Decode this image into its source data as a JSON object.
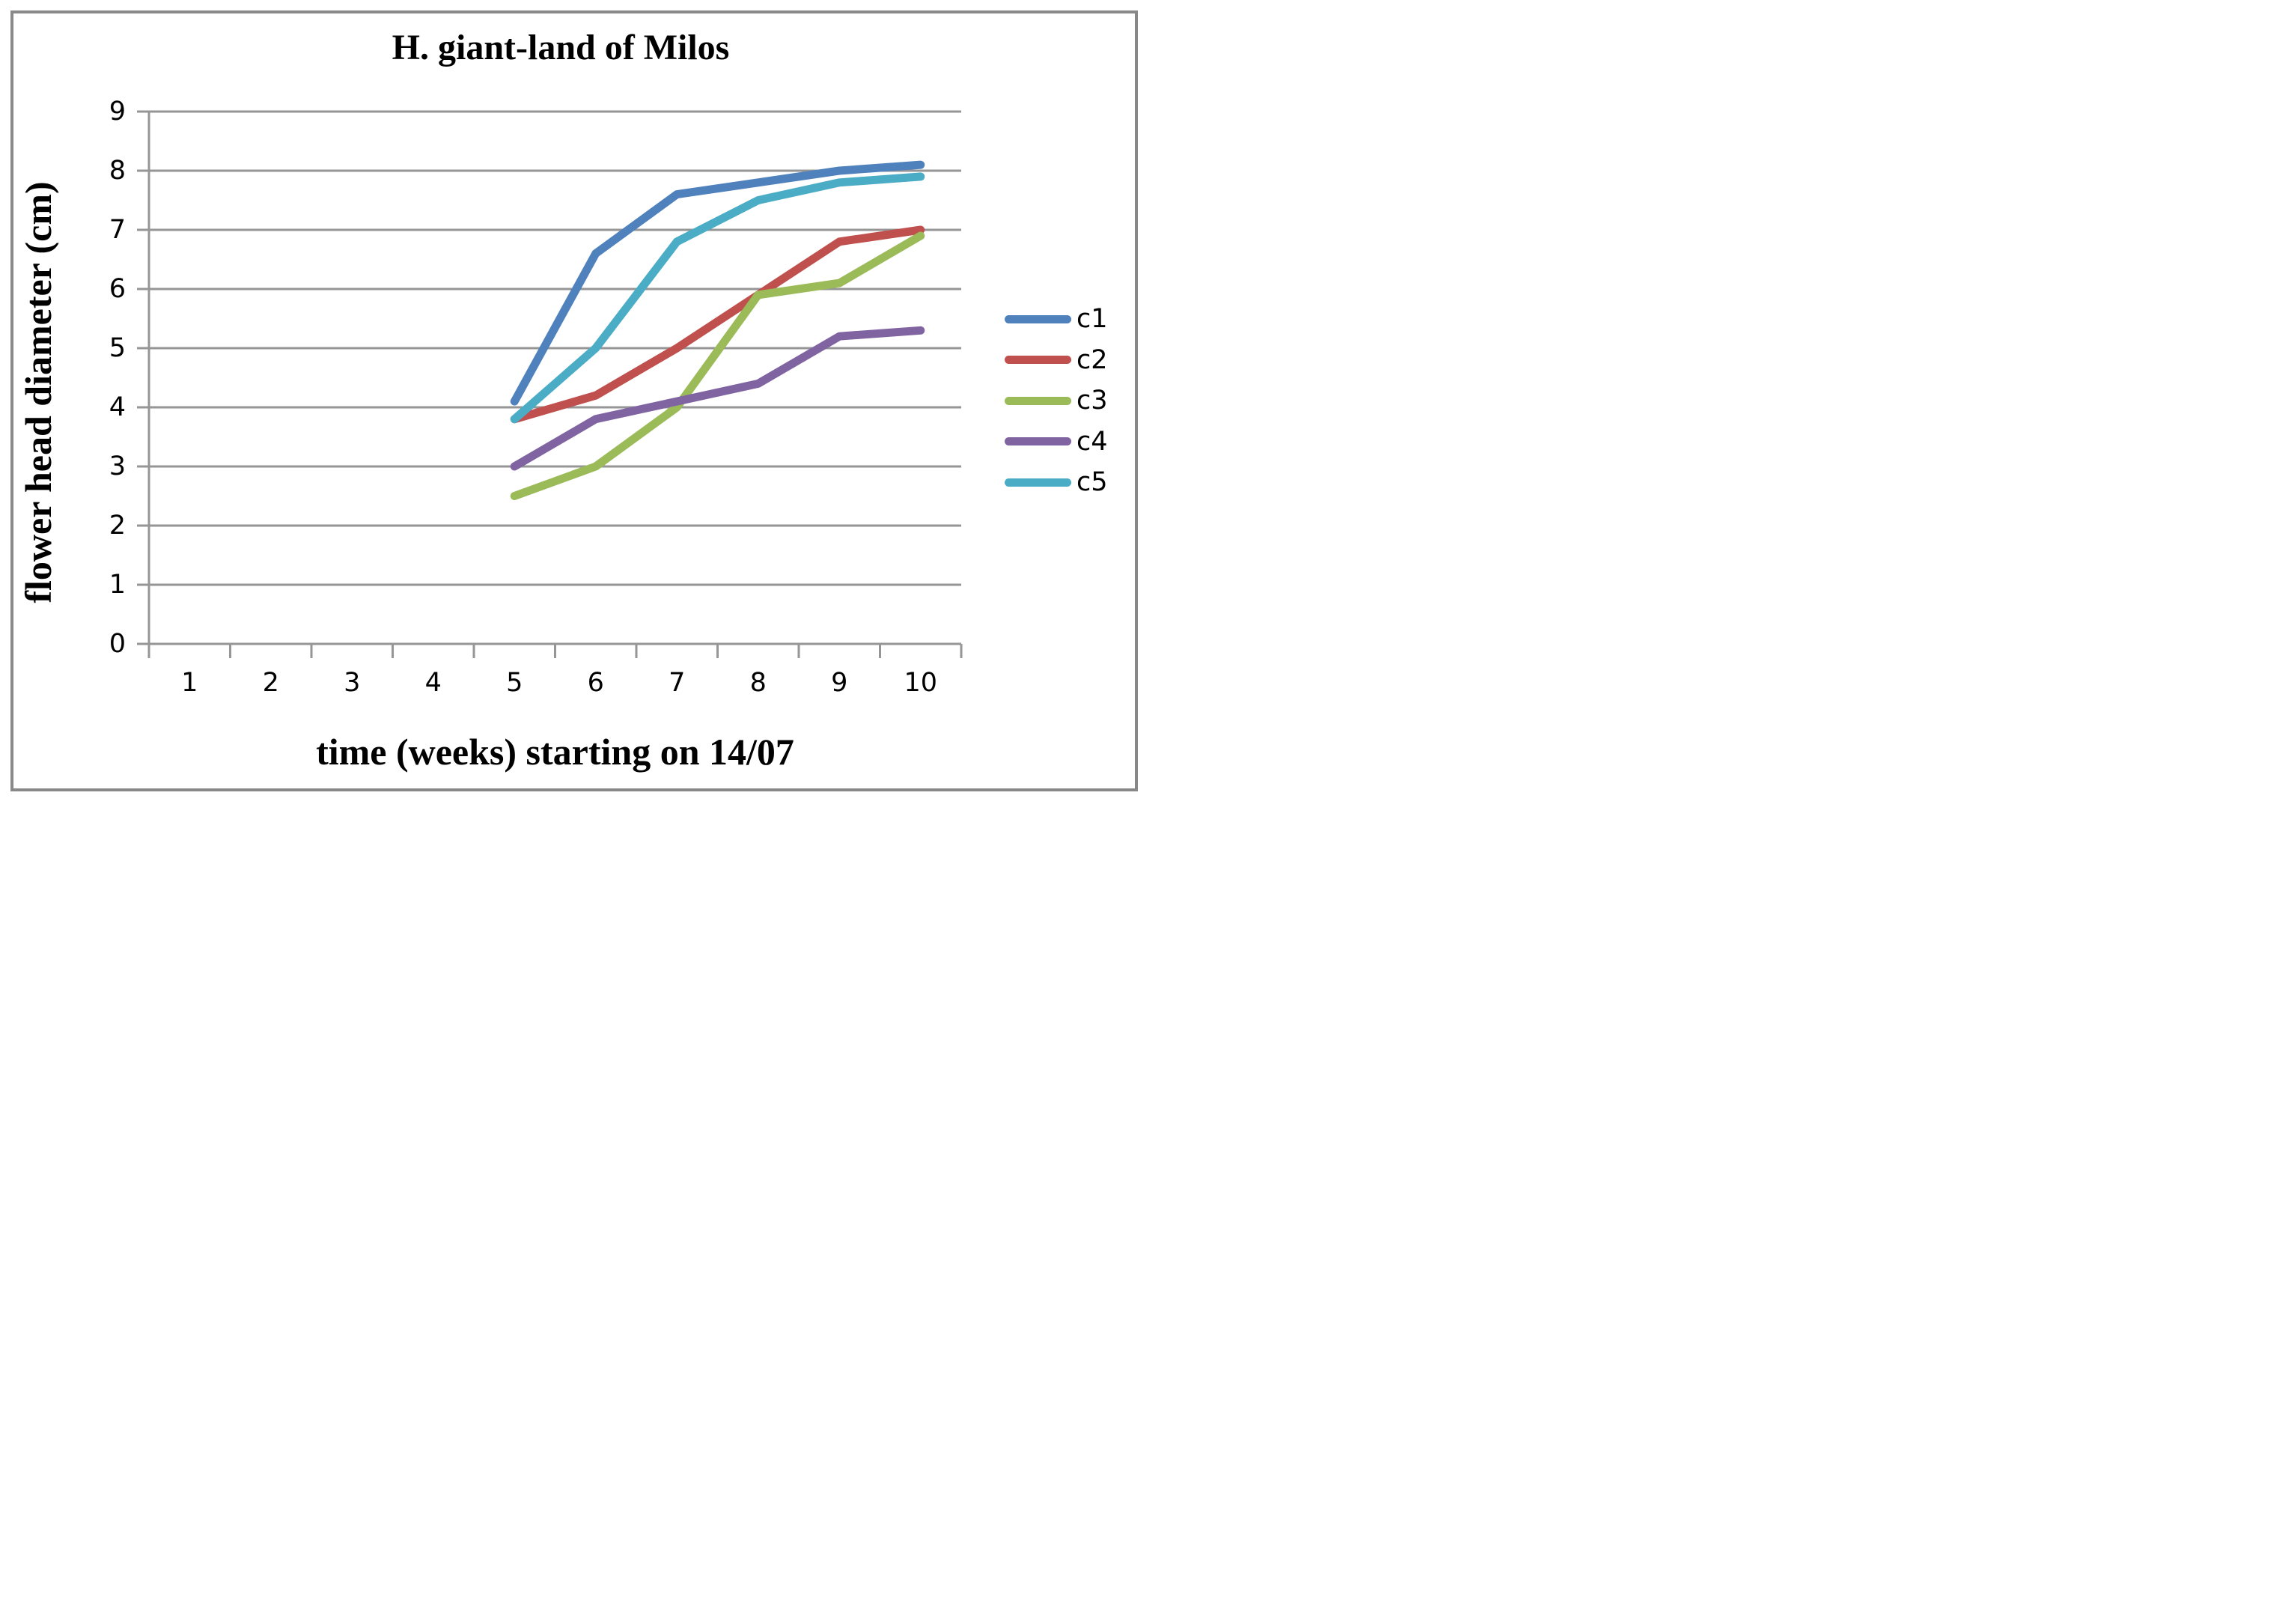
{
  "title": "H. giant-land of Milos",
  "legend": {
    "position": "right",
    "items": [
      {
        "label": "c1",
        "color": "#4F81BD"
      },
      {
        "label": "c2",
        "color": "#C0504D"
      },
      {
        "label": "c3",
        "color": "#9BBB59"
      },
      {
        "label": "c4",
        "color": "#8064A2"
      },
      {
        "label": "c5",
        "color": "#4BACC6"
      }
    ]
  },
  "colors": {
    "background": "#FFFFFF",
    "gridline": "#969696",
    "axis": "#969696",
    "outer_border": "#888888",
    "text": "#000000"
  },
  "chart_data": {
    "type": "line",
    "title": "H. giant-land of Milos",
    "xlabel": "time (weeks) starting on 14/07",
    "ylabel": "flower head diameter (cm)",
    "x": [
      1,
      2,
      3,
      4,
      5,
      6,
      7,
      8,
      9,
      10
    ],
    "x_tick_labels": [
      "1",
      "2",
      "3",
      "4",
      "5",
      "6",
      "7",
      "8",
      "9",
      "10"
    ],
    "y_tick_labels": [
      "0",
      "1",
      "2",
      "3",
      "4",
      "5",
      "6",
      "7",
      "8",
      "9"
    ],
    "ylim": [
      0,
      9
    ],
    "xlim": [
      0.5,
      10.5
    ],
    "grid": true,
    "legend_position": "right",
    "series": [
      {
        "name": "c1",
        "color": "#4F81BD",
        "values": [
          null,
          null,
          null,
          null,
          4.1,
          6.6,
          7.6,
          7.8,
          8.0,
          8.1
        ]
      },
      {
        "name": "c2",
        "color": "#C0504D",
        "values": [
          null,
          null,
          null,
          null,
          3.8,
          4.2,
          5.0,
          5.9,
          6.8,
          7.0
        ]
      },
      {
        "name": "c3",
        "color": "#9BBB59",
        "values": [
          null,
          null,
          null,
          null,
          2.5,
          3.0,
          4.0,
          5.9,
          6.1,
          6.9
        ]
      },
      {
        "name": "c4",
        "color": "#8064A2",
        "values": [
          null,
          null,
          null,
          null,
          3.0,
          3.8,
          4.1,
          4.4,
          5.2,
          5.3
        ]
      },
      {
        "name": "c5",
        "color": "#4BACC6",
        "values": [
          null,
          null,
          null,
          null,
          3.8,
          5.0,
          6.8,
          7.5,
          7.8,
          7.9
        ]
      }
    ]
  }
}
